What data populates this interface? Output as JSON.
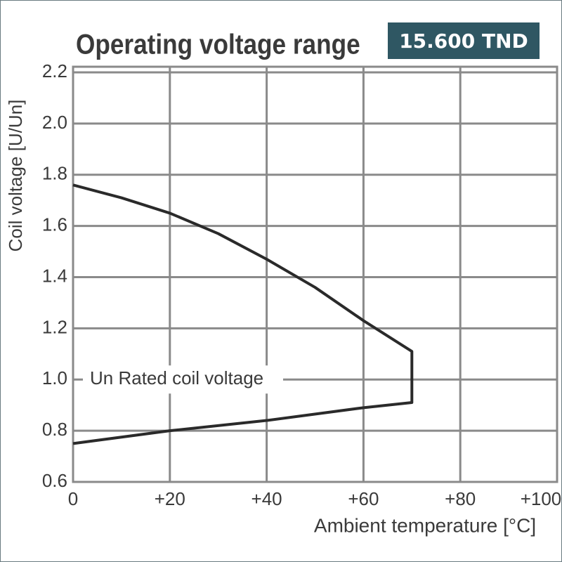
{
  "chart_data": {
    "type": "line",
    "title": "Operating voltage range",
    "x_label": "Ambient temperature [°C]",
    "y_label": "Coil voltage [U/Un]",
    "annotation": "Un Rated coil voltage",
    "xlim": [
      0,
      100
    ],
    "xticks": [
      0,
      {
        "value": 20,
        "label": "+20"
      },
      {
        "value": 40,
        "label": "+40"
      },
      {
        "value": 60,
        "label": "+60"
      },
      {
        "value": 80,
        "label": "+80"
      },
      {
        "value": 100,
        "label": "+100"
      }
    ],
    "ylim": [
      0.6,
      2.2
    ],
    "yticks": [
      0.6,
      0.8,
      {
        "value": 1,
        "label": "1.0"
      },
      1.2,
      1.4,
      1.6,
      1.8,
      {
        "value": 2,
        "label": "2.0"
      },
      2.2
    ],
    "grid": true,
    "series": [
      {
        "color": "#2a2a2a",
        "x": [
          0,
          10,
          20,
          30,
          40,
          50,
          60,
          70,
          70,
          60,
          40,
          20,
          0
        ],
        "values": [
          1.76,
          1.71,
          1.65,
          1.57,
          1.47,
          1.36,
          1.23,
          1.11,
          0.91,
          0.89,
          0.84,
          0.8,
          0.75
        ]
      }
    ]
  },
  "badge": "15.600 TND"
}
